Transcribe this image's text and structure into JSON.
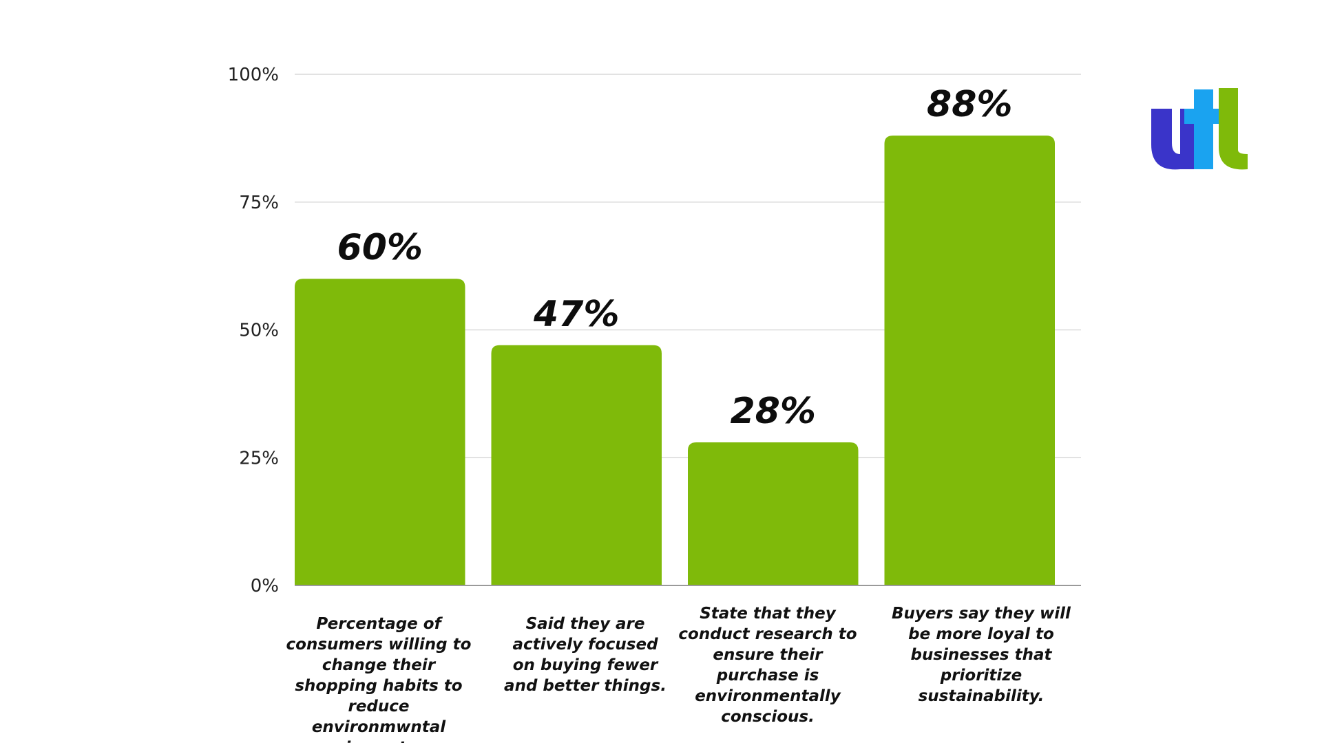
{
  "chart_data": {
    "type": "bar",
    "categories": [
      "Percentage of consumers willing to change their shopping habits to reduce environmwntal impact.",
      "Said they are actively focused on buying fewer and better things.",
      "State that they conduct research to ensure their purchase is environmentally conscious.",
      "Buyers say they will be more loyal to businesses that prioritize sustainability."
    ],
    "values": [
      60,
      47,
      28,
      88
    ],
    "value_labels": [
      "60%",
      "47%",
      "28%",
      "88%"
    ],
    "y_ticks": [
      0,
      25,
      50,
      75,
      100
    ],
    "y_tick_labels": [
      "0%",
      "25%",
      "50%",
      "75%",
      "100%"
    ],
    "ylim": [
      0,
      100
    ],
    "title": "",
    "xlabel": "",
    "ylabel": "",
    "grid": true,
    "legend": "none",
    "bar_color": "#7fba0a"
  },
  "logo": {
    "letters": "utl",
    "colors": [
      "#3a34c9",
      "#1aa3f0",
      "#7fba0a"
    ]
  }
}
